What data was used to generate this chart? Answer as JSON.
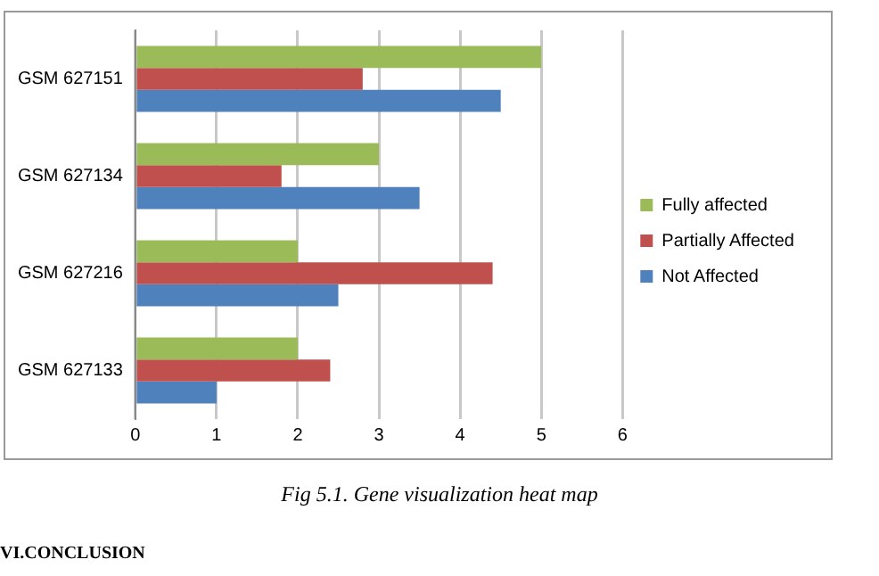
{
  "chart_data": {
    "type": "bar",
    "orientation": "horizontal",
    "categories": [
      "GSM 627151",
      "GSM 627134",
      "GSM 627216",
      "GSM 627133"
    ],
    "series": [
      {
        "name": "Fully affected",
        "color": "#9bbb59",
        "values": [
          5,
          3,
          2,
          2
        ]
      },
      {
        "name": "Partially Affected",
        "color": "#c0504d",
        "values": [
          2.8,
          1.8,
          4.4,
          2.4
        ]
      },
      {
        "name": "Not Affected",
        "color": "#4f81bd",
        "values": [
          4.5,
          3.5,
          2.5,
          1
        ]
      }
    ],
    "xlim": [
      0,
      6
    ],
    "xticks": [
      0,
      1,
      2,
      3,
      4,
      5,
      6
    ],
    "grid": "x",
    "legend": "right",
    "annotations": [
      "Fig 5.1. Gene visualization heat map",
      "VI.CONCLUSION"
    ]
  }
}
